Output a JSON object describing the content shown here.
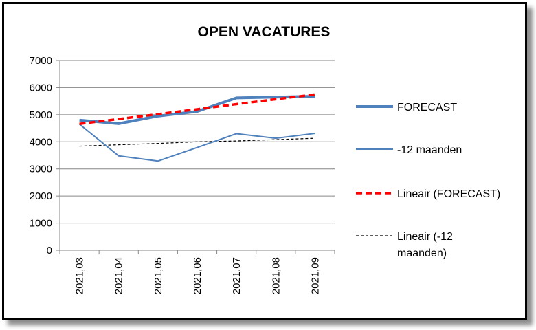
{
  "chart_data": {
    "type": "line",
    "title": "OPEN VACATURES",
    "categories": [
      "2021,03",
      "2021,04",
      "2021,05",
      "2021,06",
      "2021,07",
      "2021,08",
      "2021,09"
    ],
    "ylim": [
      0,
      7000
    ],
    "yticks": [
      0,
      1000,
      2000,
      3000,
      4000,
      5000,
      6000,
      7000
    ],
    "grid": true,
    "legend_position": "right",
    "series": [
      {
        "name": "FORECAST",
        "values": [
          4800,
          4670,
          4950,
          5120,
          5620,
          5650,
          5680
        ],
        "color": "#4f81bd",
        "style": "solid-thick"
      },
      {
        "name": "-12 maanden",
        "values": [
          4650,
          3480,
          3290,
          3790,
          4300,
          4130,
          4310
        ],
        "color": "#4f81bd",
        "style": "solid-thin"
      },
      {
        "name": "Lineair (FORECAST)",
        "values": [
          4660,
          4840,
          5020,
          5200,
          5390,
          5570,
          5750
        ],
        "color": "#ff0000",
        "style": "dashed-thick"
      },
      {
        "name": "Lineair (-12 maanden)",
        "legend_lines": [
          "Lineair (-12",
          "maanden)"
        ],
        "values": [
          3840,
          3890,
          3940,
          4000,
          4030,
          4080,
          4130
        ],
        "color": "#000000",
        "style": "dashed-thin"
      }
    ]
  }
}
